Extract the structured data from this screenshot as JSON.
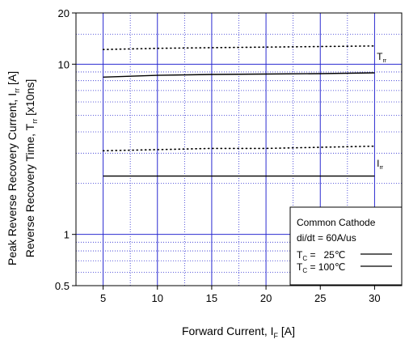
{
  "chart_data": {
    "type": "line",
    "x_axis": {
      "label": "Forward Current, I",
      "label_sub": "F",
      "label_unit": "[A]",
      "range": [
        2.5,
        32.5
      ],
      "major_ticks": [
        5,
        10,
        15,
        20,
        25,
        30
      ],
      "tick_labels": [
        "5",
        "10",
        "15",
        "20",
        "25",
        "30"
      ]
    },
    "y_axis": {
      "scale": "log",
      "range": [
        0.5,
        20
      ],
      "major_ticks": [
        0.5,
        1,
        10,
        20
      ],
      "tick_labels": [
        "0.5",
        "1",
        "10",
        "20"
      ],
      "label_line1": "Peak Reverse Recovery Current, I",
      "label_line1_sub": "rr",
      "label_line1_unit": "[A]",
      "label_line2": "Reverse Recovery Time, T",
      "label_line2_sub": "rr",
      "label_line2_unit": "[x10ns]"
    },
    "grid": true,
    "series": [
      {
        "group": "Trr",
        "condition": "Tc = 25",
        "style": "dotted",
        "x": [
          5,
          10,
          15,
          20,
          25,
          30
        ],
        "y": [
          12.2,
          12.4,
          12.5,
          12.6,
          12.7,
          12.8
        ]
      },
      {
        "group": "Trr",
        "condition": "Tc = 100",
        "style": "solid",
        "x": [
          5,
          10,
          15,
          20,
          25,
          30
        ],
        "y": [
          8.4,
          8.6,
          8.7,
          8.75,
          8.8,
          8.9
        ]
      },
      {
        "group": "Irr",
        "condition": "Tc = 25",
        "style": "dotted",
        "x": [
          5,
          10,
          15,
          20,
          25,
          30
        ],
        "y": [
          3.1,
          3.15,
          3.2,
          3.2,
          3.25,
          3.3
        ]
      },
      {
        "group": "Irr",
        "condition": "Tc = 100",
        "style": "solid",
        "x": [
          5,
          10,
          15,
          20,
          25,
          30
        ],
        "y": [
          2.2,
          2.2,
          2.2,
          2.2,
          2.2,
          2.2
        ]
      }
    ],
    "curve_labels": [
      {
        "text": "T",
        "sub": "rr",
        "x": 30.2,
        "y": 10.6
      },
      {
        "text": "I",
        "sub": "rr",
        "x": 30.2,
        "y": 2.5
      }
    ],
    "legend": {
      "placement": "bottom-right",
      "title": "Common Cathode",
      "condition": "di/dt = 60A/us",
      "entries": [
        {
          "prefix": "T",
          "sub": "C",
          "text": " =   25℃",
          "style": "solid"
        },
        {
          "prefix": "T",
          "sub": "C",
          "text": " = 100℃",
          "style": "solid"
        }
      ]
    },
    "colors": {
      "grid": "#2b2bd0",
      "curve": "#000000"
    }
  }
}
